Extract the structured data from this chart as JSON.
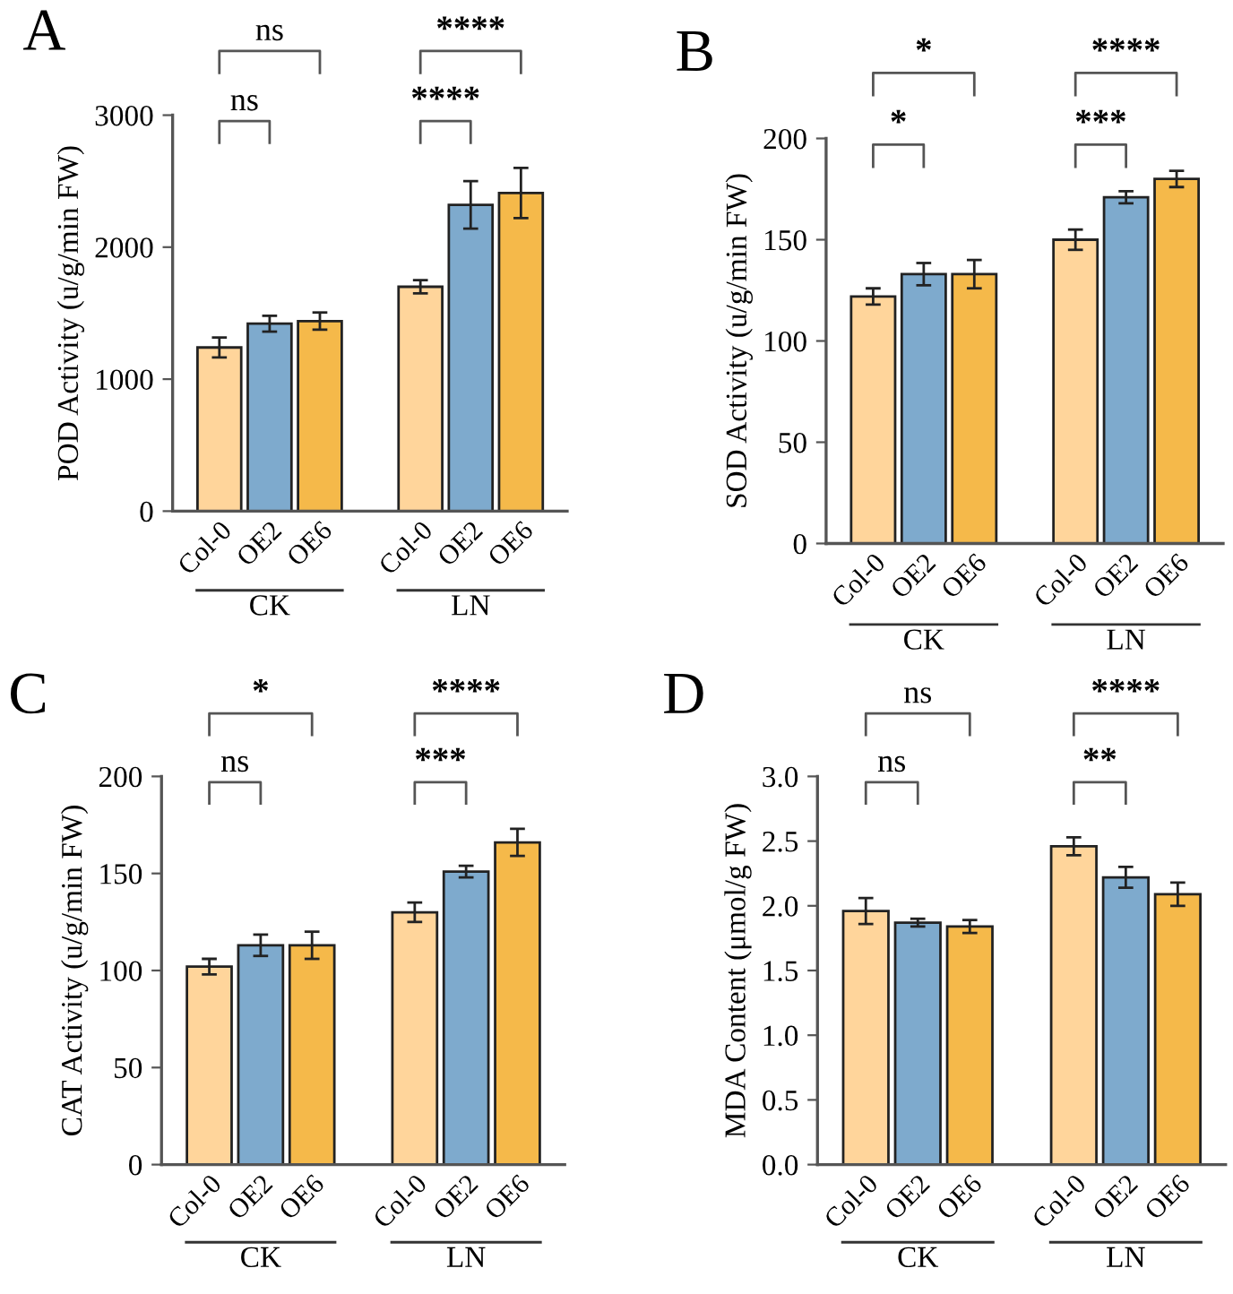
{
  "chart_data": [
    {
      "type": "bar",
      "title": "A",
      "ylabel": "POD Activity (u/g/min FW)",
      "categories": [
        "Col-0",
        "OE2",
        "OE6",
        null,
        "Col-0",
        "OE2",
        "OE6"
      ],
      "values": [
        1240,
        1420,
        1440,
        null,
        1700,
        2320,
        2410
      ],
      "errors": [
        75,
        60,
        65,
        null,
        50,
        180,
        190
      ],
      "colors": [
        "#ffd59b",
        "#7eaacd",
        "#f5b94a",
        null,
        "#ffd59b",
        "#7eaacd",
        "#f5b94a"
      ],
      "ylim": [
        0,
        3000
      ],
      "yticks": [
        0,
        1000,
        2000,
        3000
      ],
      "grid": false,
      "annotations": [
        "ns",
        "ns",
        "****",
        "****",
        "CK",
        "LN"
      ]
    },
    {
      "type": "bar",
      "title": "B",
      "ylabel": "SOD Activity (u/g/min FW)",
      "categories": [
        "Col-0",
        "OE2",
        "OE6",
        null,
        "Col-0",
        "OE2",
        "OE6"
      ],
      "values": [
        122,
        133,
        133,
        null,
        150,
        171,
        180
      ],
      "errors": [
        4,
        5.5,
        7,
        null,
        5,
        3,
        4
      ],
      "colors": [
        "#ffd59b",
        "#7eaacd",
        "#f5b94a",
        null,
        "#ffd59b",
        "#7eaacd",
        "#f5b94a"
      ],
      "ylim": [
        0,
        200
      ],
      "yticks": [
        0,
        50,
        100,
        150,
        200
      ],
      "grid": false,
      "legend": false,
      "annotations": [
        "*",
        "*",
        "***",
        "****",
        "CK",
        "LN"
      ]
    },
    {
      "type": "bar",
      "title": "C",
      "ylabel": "CAT Activity (u/g/min FW)",
      "categories": [
        "Col-0",
        "OE2",
        "OE6",
        null,
        "Col-0",
        "OE2",
        "OE6"
      ],
      "values": [
        102,
        113,
        113,
        null,
        130,
        151,
        166
      ],
      "errors": [
        4,
        5.5,
        7,
        null,
        5,
        3,
        7
      ],
      "colors": [
        "#ffd59b",
        "#7eaacd",
        "#f5b94a",
        null,
        "#ffd59b",
        "#7eaacd",
        "#f5b94a"
      ],
      "ylim": [
        0,
        200
      ],
      "yticks": [
        0,
        50,
        100,
        150,
        200
      ],
      "grid": false,
      "legend": false,
      "annotations": [
        "ns",
        "*",
        "***",
        "****",
        "CK",
        "LN"
      ]
    },
    {
      "type": "bar",
      "title": "D",
      "ylabel": "MDA Content (μmol/g FW)",
      "categories": [
        "Col-0",
        "OE2",
        "OE6",
        null,
        "Col-0",
        "OE2",
        "OE6"
      ],
      "values": [
        1.96,
        1.87,
        1.84,
        null,
        2.46,
        2.22,
        2.09
      ],
      "errors": [
        0.1,
        0.03,
        0.05,
        null,
        0.07,
        0.08,
        0.09
      ],
      "colors": [
        "#ffd59b",
        "#7eaacd",
        "#f5b94a",
        null,
        "#ffd59b",
        "#7eaacd",
        "#f5b94a"
      ],
      "ylim": [
        0,
        3.0
      ],
      "yticks": [
        {
          "value": 0,
          "label": "0.0"
        },
        0.5,
        {
          "value": 1,
          "label": "1.0"
        },
        1.5,
        {
          "value": 2,
          "label": "2.0"
        },
        2.5,
        {
          "value": 3,
          "label": "3.0"
        }
      ],
      "grid": false,
      "legend": false,
      "annotations": [
        "ns",
        "ns",
        "**",
        "****",
        "CK",
        "LN"
      ]
    }
  ]
}
